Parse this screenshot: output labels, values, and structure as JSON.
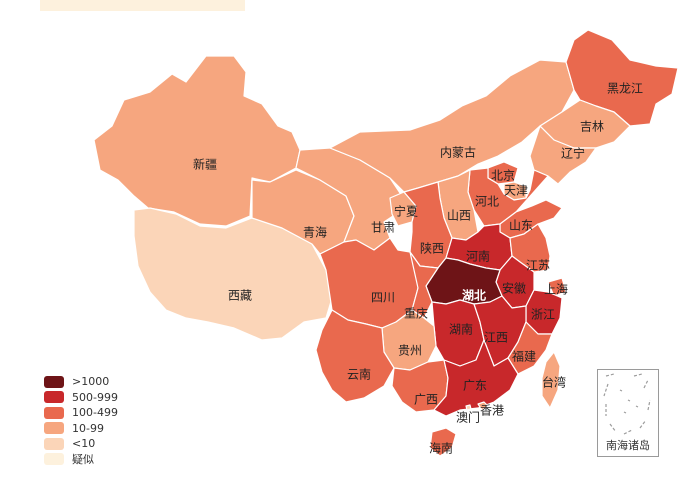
{
  "legend": {
    "items": [
      {
        "label": ">1000",
        "color": "#6e1417"
      },
      {
        "label": "500-999",
        "color": "#c8282b"
      },
      {
        "label": "100-499",
        "color": "#e9694e"
      },
      {
        "label": "10-99",
        "color": "#f6a67f"
      },
      {
        "label": "<10",
        "color": "#fbd5b8"
      },
      {
        "label": "疑似",
        "color": "#fdf1dd"
      }
    ]
  },
  "provinces": [
    {
      "name": "新疆",
      "level": "10-99"
    },
    {
      "name": "西藏",
      "level": "<10"
    },
    {
      "name": "青海",
      "level": "10-99"
    },
    {
      "name": "甘肃",
      "level": "10-99"
    },
    {
      "name": "宁夏",
      "level": "10-99"
    },
    {
      "name": "内蒙古",
      "level": "10-99"
    },
    {
      "name": "黑龙江",
      "level": "100-499"
    },
    {
      "name": "吉林",
      "level": "10-99"
    },
    {
      "name": "辽宁",
      "level": "10-99"
    },
    {
      "name": "北京",
      "level": "100-499"
    },
    {
      "name": "天津",
      "level": "10-99"
    },
    {
      "name": "河北",
      "level": "100-499"
    },
    {
      "name": "山西",
      "level": "10-99"
    },
    {
      "name": "山东",
      "level": "100-499"
    },
    {
      "name": "陕西",
      "level": "100-499"
    },
    {
      "name": "河南",
      "level": "500-999"
    },
    {
      "name": "江苏",
      "level": "100-499"
    },
    {
      "name": "上海",
      "level": "100-499"
    },
    {
      "name": "安徽",
      "level": "500-999"
    },
    {
      "name": "湖北",
      "level": ">1000"
    },
    {
      "name": "四川",
      "level": "100-499"
    },
    {
      "name": "重庆",
      "level": "100-499"
    },
    {
      "name": "浙江",
      "level": "500-999"
    },
    {
      "name": "湖南",
      "level": "500-999"
    },
    {
      "name": "江西",
      "level": "500-999"
    },
    {
      "name": "贵州",
      "level": "10-99"
    },
    {
      "name": "云南",
      "level": "100-499"
    },
    {
      "name": "福建",
      "level": "100-499"
    },
    {
      "name": "广西",
      "level": "100-499"
    },
    {
      "name": "广东",
      "level": "500-999"
    },
    {
      "name": "台湾",
      "level": "10-99"
    },
    {
      "name": "香港",
      "level": "10-99"
    },
    {
      "name": "澳门",
      "level": "<10"
    },
    {
      "name": "海南",
      "level": "100-499"
    }
  ],
  "inset": {
    "label": "南海诸岛"
  }
}
